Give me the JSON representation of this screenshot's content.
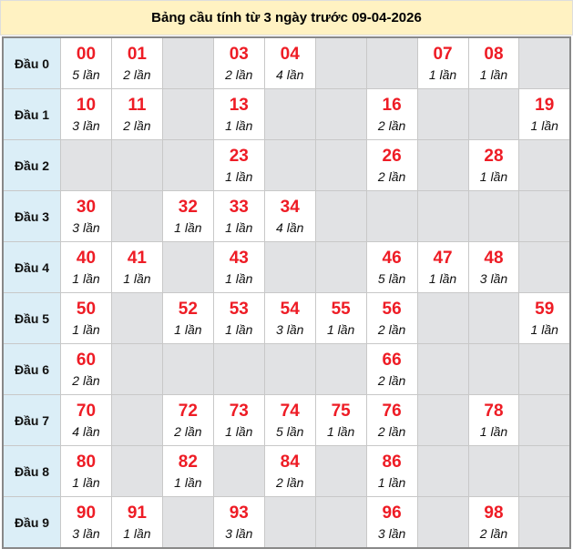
{
  "title": "Bảng cầu tính từ 3 ngày trước 09-04-2026",
  "colors": {
    "number": "#ee1c25",
    "header_bg": "#fff2c2",
    "label_bg": "#dbeef7",
    "empty_bg": "#e1e2e4"
  },
  "rows": [
    {
      "label": "Đầu 0",
      "cells": [
        {
          "num": "00",
          "count": "5 lần"
        },
        {
          "num": "01",
          "count": "2 lần"
        },
        null,
        {
          "num": "03",
          "count": "2 lần"
        },
        {
          "num": "04",
          "count": "4 lần"
        },
        null,
        null,
        {
          "num": "07",
          "count": "1 lần"
        },
        {
          "num": "08",
          "count": "1 lần"
        },
        null
      ]
    },
    {
      "label": "Đầu 1",
      "cells": [
        {
          "num": "10",
          "count": "3 lần"
        },
        {
          "num": "11",
          "count": "2 lần"
        },
        null,
        {
          "num": "13",
          "count": "1 lần"
        },
        null,
        null,
        {
          "num": "16",
          "count": "2 lần"
        },
        null,
        null,
        {
          "num": "19",
          "count": "1 lần"
        }
      ]
    },
    {
      "label": "Đầu 2",
      "cells": [
        null,
        null,
        null,
        {
          "num": "23",
          "count": "1 lần"
        },
        null,
        null,
        {
          "num": "26",
          "count": "2 lần"
        },
        null,
        {
          "num": "28",
          "count": "1 lần"
        },
        null
      ]
    },
    {
      "label": "Đầu 3",
      "cells": [
        {
          "num": "30",
          "count": "3 lần"
        },
        null,
        {
          "num": "32",
          "count": "1 lần"
        },
        {
          "num": "33",
          "count": "1 lần"
        },
        {
          "num": "34",
          "count": "4 lần"
        },
        null,
        null,
        null,
        null,
        null
      ]
    },
    {
      "label": "Đầu 4",
      "cells": [
        {
          "num": "40",
          "count": "1 lần"
        },
        {
          "num": "41",
          "count": "1 lần"
        },
        null,
        {
          "num": "43",
          "count": "1 lần"
        },
        null,
        null,
        {
          "num": "46",
          "count": "5 lần"
        },
        {
          "num": "47",
          "count": "1 lần"
        },
        {
          "num": "48",
          "count": "3 lần"
        },
        null
      ]
    },
    {
      "label": "Đầu 5",
      "cells": [
        {
          "num": "50",
          "count": "1 lần"
        },
        null,
        {
          "num": "52",
          "count": "1 lần"
        },
        {
          "num": "53",
          "count": "1 lần"
        },
        {
          "num": "54",
          "count": "3 lần"
        },
        {
          "num": "55",
          "count": "1 lần"
        },
        {
          "num": "56",
          "count": "2 lần"
        },
        null,
        null,
        {
          "num": "59",
          "count": "1 lần"
        }
      ]
    },
    {
      "label": "Đầu 6",
      "cells": [
        {
          "num": "60",
          "count": "2 lần"
        },
        null,
        null,
        null,
        null,
        null,
        {
          "num": "66",
          "count": "2 lần"
        },
        null,
        null,
        null
      ]
    },
    {
      "label": "Đầu 7",
      "cells": [
        {
          "num": "70",
          "count": "4 lần"
        },
        null,
        {
          "num": "72",
          "count": "2 lần"
        },
        {
          "num": "73",
          "count": "1 lần"
        },
        {
          "num": "74",
          "count": "5 lần"
        },
        {
          "num": "75",
          "count": "1 lần"
        },
        {
          "num": "76",
          "count": "2 lần"
        },
        null,
        {
          "num": "78",
          "count": "1 lần"
        },
        null
      ]
    },
    {
      "label": "Đầu 8",
      "cells": [
        {
          "num": "80",
          "count": "1 lần"
        },
        null,
        {
          "num": "82",
          "count": "1 lần"
        },
        null,
        {
          "num": "84",
          "count": "2 lần"
        },
        null,
        {
          "num": "86",
          "count": "1 lần"
        },
        null,
        null,
        null
      ]
    },
    {
      "label": "Đầu 9",
      "cells": [
        {
          "num": "90",
          "count": "3 lần"
        },
        {
          "num": "91",
          "count": "1 lần"
        },
        null,
        {
          "num": "93",
          "count": "3 lần"
        },
        null,
        null,
        {
          "num": "96",
          "count": "3 lần"
        },
        null,
        {
          "num": "98",
          "count": "2 lần"
        },
        null
      ]
    }
  ]
}
